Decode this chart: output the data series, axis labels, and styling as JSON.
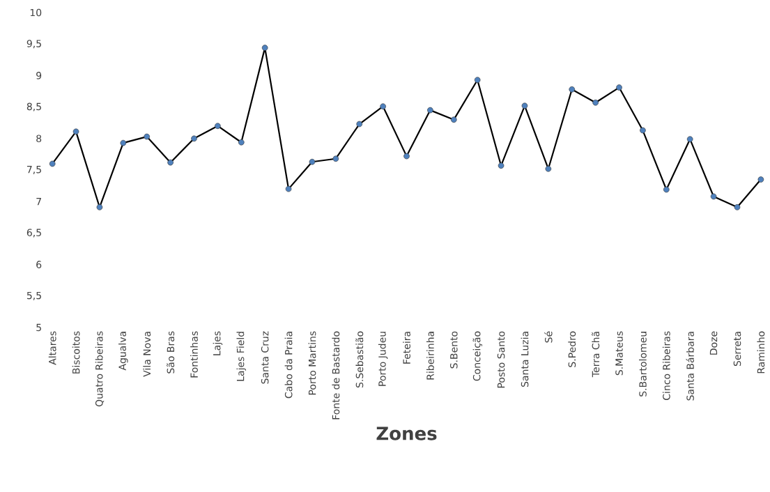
{
  "chart_data": {
    "type": "line",
    "xlabel": "Zones",
    "categories": [
      "Altares",
      "Biscoitos",
      "Quatro Ribeiras",
      "Agualva",
      "Vila Nova",
      "São Bras",
      "Fontinhas",
      "Lajes",
      "Lajes Field",
      "Santa Cruz",
      "Cabo da Praia",
      "Porto Martins",
      "Fonte de Bastardo",
      "S.Sebastião",
      "Porto Judeu",
      "Feteira",
      "Ribeirinha",
      "S.Bento",
      "Conceição",
      "Posto Santo",
      "Santa Luzia",
      "Sé",
      "S.Pedro",
      "Terra Chã",
      "S.Mateus",
      "S.Bartolomeu",
      "Cinco Ribeiras",
      "Santa Bárbara",
      "Doze",
      "Serreta",
      "Raminho"
    ],
    "series": [
      {
        "color": "#000000",
        "values": [
          7.6,
          8.11,
          6.91,
          7.93,
          8.03,
          7.62,
          8.0,
          8.2,
          7.94,
          9.44,
          7.2,
          7.63,
          7.68,
          8.23,
          8.51,
          7.72,
          8.45,
          8.3,
          8.93,
          7.57,
          8.52,
          7.52,
          8.78,
          8.57,
          8.81,
          8.13,
          7.19,
          7.99,
          7.08,
          6.91,
          7.35
        ]
      }
    ],
    "ylim": [
      5,
      10
    ],
    "yticks": [
      5,
      {
        "value": 5.5,
        "label": "5,5"
      },
      6,
      {
        "value": 6.5,
        "label": "6,5"
      },
      7,
      {
        "value": 7.5,
        "label": "7,5"
      },
      8,
      {
        "value": 8.5,
        "label": "8,5"
      },
      9,
      {
        "value": 9.5,
        "label": "9,5"
      },
      10
    ],
    "marker": "circle",
    "line_style": "solid",
    "grid": false,
    "legend": false
  }
}
